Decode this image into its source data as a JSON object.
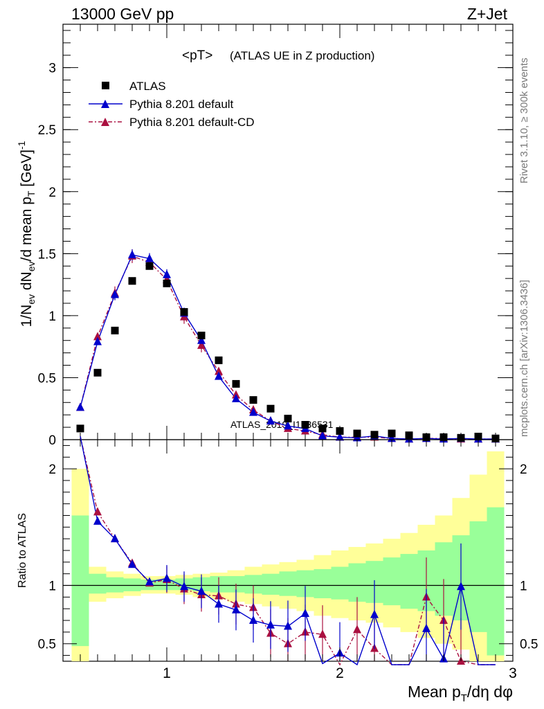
{
  "header": {
    "left": "13000 GeV pp",
    "right": "Z+Jet",
    "plot_title": "<pT>",
    "plot_subtitle": "(ATLAS UE in Z production)"
  },
  "side": {
    "rivet": "Rivet 3.1.10, ≥ 300k events",
    "site": "mcplots.cern.ch [arXiv:1306.3436]"
  },
  "watermark": "ATLAS_2019_I1736531",
  "legend": {
    "atlas": "ATLAS",
    "pythia": "Pythia 8.201 default",
    "pythia_cd": "Pythia 8.201 default-CD"
  },
  "colors": {
    "data": "#000000",
    "pythia": "#0000cc",
    "pythia_cd": "#aa1040",
    "band_inner": "#99ff99",
    "band_outer": "#ffff99"
  },
  "chart_data": [
    {
      "type": "scatter",
      "ylabel": "1/N_ev dN_ev/d mean p_T [GeV]^-1",
      "xlim": [
        0.4,
        3.0
      ],
      "ylim": [
        0,
        3.35
      ],
      "yticks": [
        "0",
        "0.5",
        "1",
        "1.5",
        "2",
        "2.5",
        "3"
      ],
      "x": [
        0.5,
        0.6,
        0.7,
        0.8,
        0.9,
        1.0,
        1.1,
        1.2,
        1.3,
        1.4,
        1.5,
        1.6,
        1.7,
        1.8,
        1.9,
        2.0,
        2.1,
        2.2,
        2.3,
        2.4,
        2.5,
        2.6,
        2.7,
        2.8,
        2.9
      ],
      "series": [
        {
          "name": "ATLAS",
          "values": [
            0.09,
            0.54,
            0.88,
            1.28,
            1.4,
            1.26,
            1.03,
            0.84,
            0.64,
            0.45,
            0.32,
            0.25,
            0.17,
            0.12,
            0.09,
            0.07,
            0.05,
            0.04,
            0.05,
            0.035,
            0.02,
            0.02,
            0.015,
            0.025,
            0.01
          ]
        },
        {
          "name": "Pythia 8.201 default",
          "values": [
            0.26,
            0.79,
            1.17,
            1.49,
            1.46,
            1.33,
            1.02,
            0.8,
            0.51,
            0.33,
            0.22,
            0.15,
            0.11,
            0.09,
            0.03,
            0.02,
            0.015,
            0.03,
            0.01,
            0.005,
            0.01,
            0.005,
            0.01,
            0.005,
            0.005
          ]
        },
        {
          "name": "Pythia 8.201 default-CD",
          "values": [
            0.26,
            0.83,
            1.18,
            1.48,
            1.43,
            1.29,
            0.99,
            0.76,
            0.55,
            0.36,
            0.24,
            0.15,
            0.09,
            0.07,
            0.04,
            0.02,
            0.02,
            0.02,
            0.01,
            0.005,
            0.01,
            0.01,
            0.005,
            0.005,
            0.005
          ]
        }
      ]
    },
    {
      "type": "line",
      "xlabel": "Mean p_T/dη dφ",
      "ylabel": "Ratio to ATLAS",
      "xlim": [
        0.4,
        3.0
      ],
      "ylim": [
        0.35,
        2.25
      ],
      "xticks": [
        "1",
        "2",
        "3"
      ],
      "yticks": [
        "0.5",
        "1",
        "2"
      ],
      "x": [
        0.5,
        0.6,
        0.7,
        0.8,
        0.9,
        1.0,
        1.1,
        1.2,
        1.3,
        1.4,
        1.5,
        1.6,
        1.7,
        1.8,
        1.9,
        2.0,
        2.1,
        2.2,
        2.3,
        2.4,
        2.5,
        2.6,
        2.7,
        2.8,
        2.9
      ],
      "band_inner": [
        [
          0.48,
          1.6
        ],
        [
          0.93,
          1.1
        ],
        [
          0.94,
          1.07
        ],
        [
          0.95,
          1.06
        ],
        [
          0.96,
          1.05
        ],
        [
          0.96,
          1.05
        ],
        [
          0.96,
          1.06
        ],
        [
          0.95,
          1.07
        ],
        [
          0.94,
          1.08
        ],
        [
          0.94,
          1.08
        ],
        [
          0.93,
          1.09
        ],
        [
          0.92,
          1.1
        ],
        [
          0.91,
          1.12
        ],
        [
          0.9,
          1.13
        ],
        [
          0.89,
          1.14
        ],
        [
          0.88,
          1.16
        ],
        [
          0.86,
          1.19
        ],
        [
          0.85,
          1.21
        ],
        [
          0.83,
          1.24
        ],
        [
          0.8,
          1.27
        ],
        [
          0.78,
          1.3
        ],
        [
          0.74,
          1.37
        ],
        [
          0.7,
          1.43
        ],
        [
          0.6,
          1.55
        ],
        [
          0.4,
          1.67
        ]
      ],
      "band_outer": [
        [
          0.28,
          2.0
        ],
        [
          0.86,
          1.16
        ],
        [
          0.89,
          1.12
        ],
        [
          0.91,
          1.1
        ],
        [
          0.93,
          1.08
        ],
        [
          0.93,
          1.08
        ],
        [
          0.92,
          1.09
        ],
        [
          0.9,
          1.1
        ],
        [
          0.88,
          1.11
        ],
        [
          0.86,
          1.13
        ],
        [
          0.84,
          1.16
        ],
        [
          0.82,
          1.18
        ],
        [
          0.8,
          1.2
        ],
        [
          0.78,
          1.22
        ],
        [
          0.74,
          1.26
        ],
        [
          0.72,
          1.3
        ],
        [
          0.7,
          1.33
        ],
        [
          0.68,
          1.36
        ],
        [
          0.64,
          1.4
        ],
        [
          0.6,
          1.45
        ],
        [
          0.55,
          1.52
        ],
        [
          0.5,
          1.6
        ],
        [
          0.45,
          1.75
        ],
        [
          0.35,
          1.95
        ],
        [
          0.3,
          2.15
        ]
      ],
      "series": [
        {
          "name": "Pythia 8.201 default",
          "values": [
            2.87,
            1.55,
            1.4,
            1.18,
            1.03,
            1.06,
            0.99,
            0.95,
            0.84,
            0.79,
            0.7,
            0.66,
            0.65,
            0.76,
            0.33,
            0.42,
            0.25,
            0.75,
            0.2,
            0.15,
            0.63,
            0.37,
            0.99,
            0.2,
            0.3
          ]
        },
        {
          "name": "Pythia 8.201 default-CD",
          "values": [
            2.87,
            1.63,
            1.4,
            1.19,
            1.02,
            1.05,
            0.97,
            0.92,
            0.91,
            0.84,
            0.81,
            0.59,
            0.5,
            0.6,
            0.58,
            0.32,
            0.62,
            0.46,
            0.2,
            0.2,
            0.9,
            0.7,
            0.35,
            0.25,
            0.3
          ]
        }
      ]
    }
  ]
}
